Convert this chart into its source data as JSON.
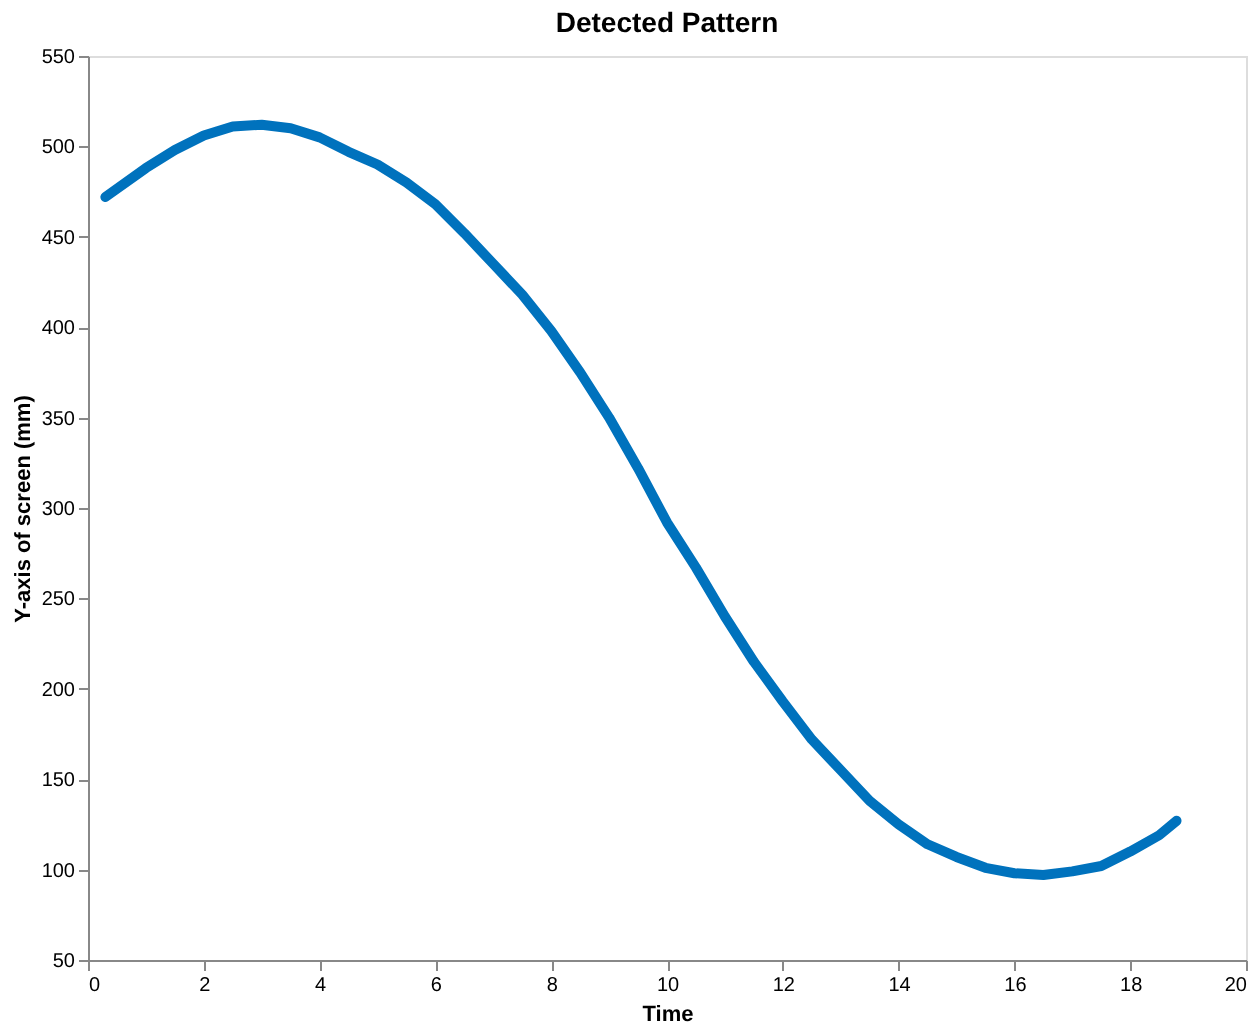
{
  "chart_data": {
    "type": "line",
    "title": "Detected Pattern",
    "xlabel": "Time",
    "ylabel": "Y-axis of screen (mm)",
    "xlim": [
      0,
      20
    ],
    "xticks": [
      0,
      2,
      4,
      6,
      8,
      10,
      12,
      14,
      16,
      18,
      20
    ],
    "ylim": [
      50,
      550
    ],
    "yticks": [
      50,
      100,
      150,
      200,
      250,
      300,
      350,
      400,
      450,
      500,
      550
    ],
    "grid": false,
    "marker": "none",
    "line_style": "solid",
    "series": [
      {
        "color": "#0072bd",
        "x": [
          0.3,
          1,
          1.5,
          2,
          2.5,
          3,
          3.5,
          4,
          4.5,
          5,
          5.5,
          6,
          6.5,
          7,
          7.5,
          8,
          8.5,
          9,
          9.5,
          10,
          10.5,
          11,
          11.5,
          12,
          12.5,
          13,
          13.5,
          14,
          14.5,
          15,
          15.5,
          16,
          16.5,
          17,
          17.5,
          18,
          18.5,
          18.8
        ],
        "values": [
          472,
          488,
          498,
          506,
          511,
          512,
          510,
          505,
          497,
          490,
          480,
          468,
          452,
          435,
          418,
          398,
          375,
          350,
          322,
          292,
          267,
          240,
          215,
          193,
          172,
          155,
          138,
          125,
          114,
          107,
          101,
          98,
          97,
          99,
          102,
          110,
          119,
          127
        ]
      }
    ]
  }
}
